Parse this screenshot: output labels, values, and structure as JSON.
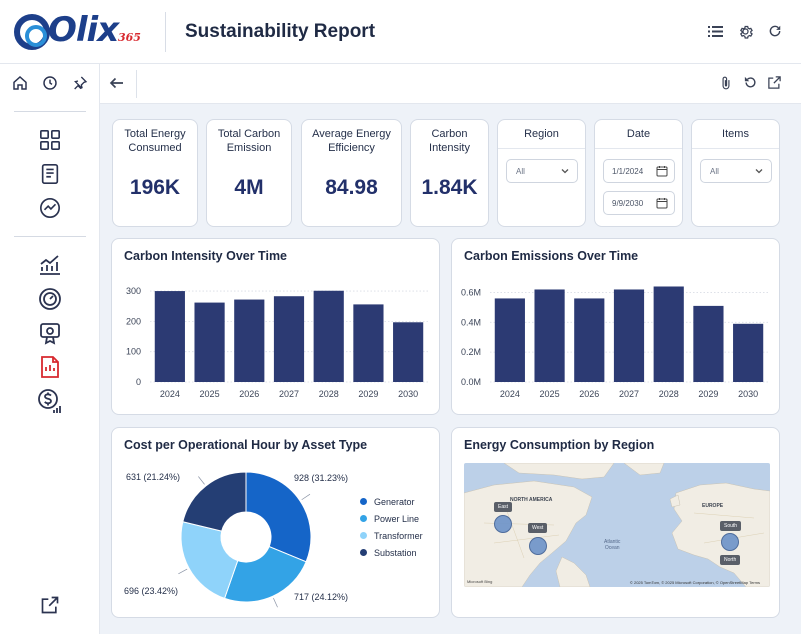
{
  "header": {
    "logo_text": "Olix",
    "logo_sub": "365",
    "title": "Sustainability Report",
    "icons": [
      "list-icon",
      "gear-icon",
      "refresh-icon"
    ]
  },
  "sidebar": {
    "top_icons": [
      "home-icon",
      "clock-icon",
      "pin-icon"
    ],
    "items": [
      {
        "icon": "dashboard-grid-icon"
      },
      {
        "icon": "report-document-icon"
      },
      {
        "icon": "trend-circle-icon"
      },
      {
        "icon": "line-chart-icon"
      },
      {
        "icon": "gauge-icon"
      },
      {
        "icon": "certificate-icon"
      },
      {
        "icon": "pdf-report-icon",
        "color": "#d8292f"
      },
      {
        "icon": "dollar-growth-icon"
      }
    ],
    "bottom_icon": "external-link-icon"
  },
  "toolbar": {
    "icons": [
      "back-arrow-icon",
      "paperclip-icon",
      "undo-icon",
      "open-external-icon"
    ]
  },
  "kpis": [
    {
      "label": "Total Energy Consumed",
      "value": "196K"
    },
    {
      "label": "Total Carbon Emission",
      "value": "4M"
    },
    {
      "label": "Average Energy Efficiency",
      "value": "84.98"
    },
    {
      "label": "Carbon Intensity",
      "value": "1.84K"
    }
  ],
  "filters": {
    "region": {
      "label": "Region",
      "value": "All"
    },
    "date": {
      "label": "Date",
      "start": "1/1/2024",
      "end": "9/9/2030"
    },
    "items": {
      "label": "Items",
      "value": "All"
    }
  },
  "charts": {
    "carbon_intensity": {
      "title": "Carbon Intensity Over Time"
    },
    "carbon_emissions": {
      "title": "Carbon Emissions Over Time"
    },
    "cost_per_hour": {
      "title": "Cost per Operational Hour by Asset Type"
    },
    "energy_region": {
      "title": "Energy Consumption by Region"
    }
  },
  "map": {
    "labels": [
      "NORTH AMERICA",
      "EUROPE"
    ],
    "ocean": [
      "Atlantic",
      "Ocean"
    ],
    "tooltips": [
      "East",
      "West",
      "South",
      "North"
    ],
    "credit": "© 2025 TomTom, © 2025 Microsoft Corporation, © OpenStreetMap  Terms",
    "ms": "Microsoft Bing",
    "bubble_color": "#6d93c9"
  },
  "colors": {
    "bar": "#2c3a73",
    "accent": "#1d3f8a",
    "red": "#d8292f"
  },
  "chart_data": [
    {
      "type": "bar",
      "title": "Carbon Intensity Over Time",
      "categories": [
        "2024",
        "2025",
        "2026",
        "2027",
        "2028",
        "2029",
        "2030"
      ],
      "values": [
        300,
        262,
        272,
        283,
        301,
        256,
        197
      ],
      "yticks": [
        "0",
        "100",
        "200",
        "300"
      ],
      "ylim": [
        0,
        320
      ],
      "color": "#2c3a73"
    },
    {
      "type": "bar",
      "title": "Carbon Emissions Over Time",
      "categories": [
        "2024",
        "2025",
        "2026",
        "2027",
        "2028",
        "2029",
        "2030"
      ],
      "values": [
        0.56,
        0.62,
        0.56,
        0.62,
        0.64,
        0.51,
        0.39
      ],
      "yticks": [
        "0.0M",
        "0.2M",
        "0.4M",
        "0.6M"
      ],
      "ylim": [
        0,
        0.65
      ],
      "color": "#2c3a73"
    },
    {
      "type": "pie",
      "title": "Cost per Operational Hour by Asset Type",
      "donut": true,
      "slices": [
        {
          "name": "Generator",
          "value": 928,
          "label": "928 (31.23%)",
          "color": "#1565c8"
        },
        {
          "name": "Power Line",
          "value": 717,
          "label": "717 (24.12%)",
          "color": "#33a3e6"
        },
        {
          "name": "Transformer",
          "value": 696,
          "label": "696 (23.42%)",
          "color": "#8fd3fa"
        },
        {
          "name": "Substation",
          "value": 631,
          "label": "631 (21.24%)",
          "color": "#243e74"
        }
      ]
    }
  ]
}
